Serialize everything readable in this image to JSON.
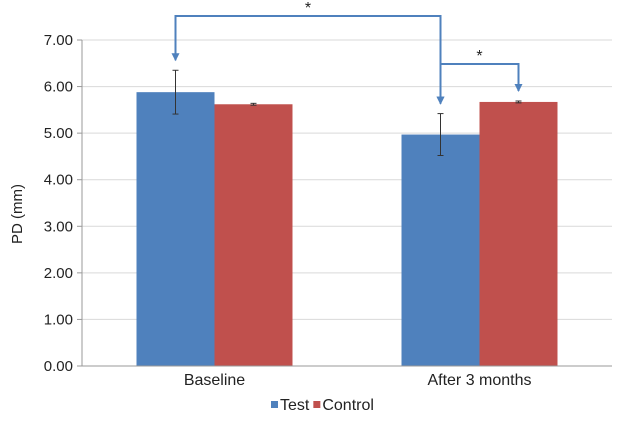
{
  "chart_data": {
    "type": "bar",
    "title": "",
    "xlabel": "",
    "ylabel": "PD (mm)",
    "ylim": [
      0,
      7
    ],
    "yticks": [
      "0.00",
      "1.00",
      "2.00",
      "3.00",
      "4.00",
      "5.00",
      "6.00",
      "7.00"
    ],
    "grid": true,
    "legend_position": "bottom",
    "categories": [
      "Baseline",
      "After 3 months"
    ],
    "series": [
      {
        "name": "Test",
        "color": "#4f81bd",
        "values": [
          5.88,
          4.97
        ],
        "errors": [
          0.47,
          0.45
        ]
      },
      {
        "name": "Control",
        "color": "#c0504d",
        "values": [
          5.62,
          5.67
        ],
        "errors": [
          0.02,
          0.02
        ]
      }
    ],
    "significance": [
      {
        "label": "*",
        "from": {
          "series": 0,
          "category": 0
        },
        "to": {
          "series": 0,
          "category": 1
        }
      },
      {
        "label": "*",
        "from": {
          "series": 0,
          "category": 1
        },
        "to": {
          "series": 1,
          "category": 1
        }
      }
    ],
    "annotation_color": "#4f81bd"
  }
}
